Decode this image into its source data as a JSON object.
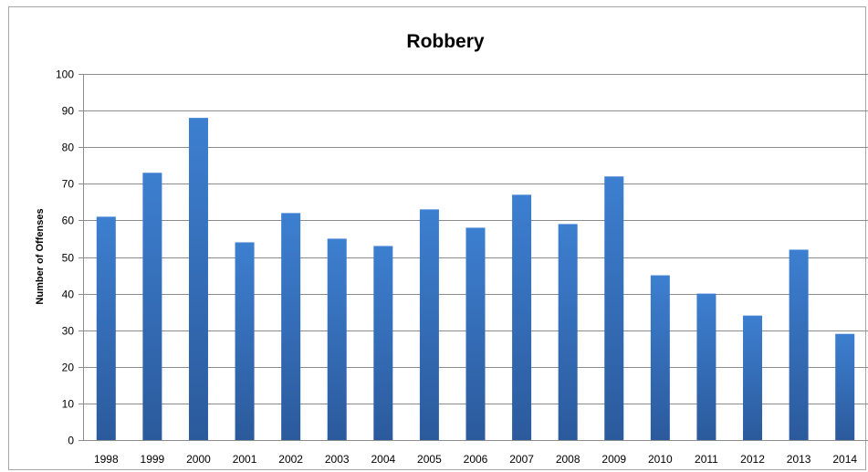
{
  "chart_data": {
    "type": "bar",
    "title": "Robbery",
    "xlabel": "",
    "ylabel": "Number of Offenses",
    "categories": [
      "1998",
      "1999",
      "2000",
      "2001",
      "2002",
      "2003",
      "2004",
      "2005",
      "2006",
      "2007",
      "2008",
      "2009",
      "2010",
      "2011",
      "2012",
      "2013",
      "2014"
    ],
    "values": [
      61,
      73,
      88,
      54,
      62,
      55,
      53,
      63,
      58,
      67,
      59,
      72,
      45,
      40,
      34,
      52,
      29
    ],
    "ylim": [
      0,
      100
    ],
    "yticks": [
      "0",
      "10",
      "20",
      "30",
      "40",
      "50",
      "60",
      "70",
      "80",
      "90",
      "100"
    ],
    "grid": true,
    "legend": "none",
    "colors": {
      "bar_top": "#3d7fd0",
      "bar_bottom": "#2b5a9c",
      "grid": "#8c8c8c"
    }
  }
}
